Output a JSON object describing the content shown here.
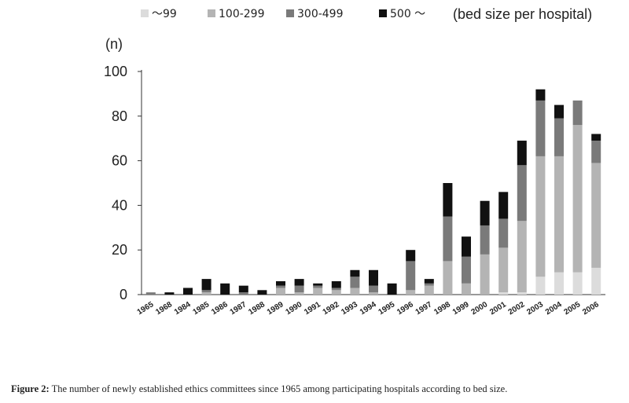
{
  "chart_data": {
    "type": "bar",
    "stacked": true,
    "title": "",
    "ylabel": "(n)",
    "xlabel": "",
    "ylim": [
      0,
      100
    ],
    "yticks": [
      0,
      20,
      40,
      60,
      80,
      100
    ],
    "legend_title": "(bed size per hospital)",
    "legend_position": "top",
    "categories": [
      "1965",
      "1968",
      "1984",
      "1985",
      "1986",
      "1987",
      "1988",
      "1989",
      "1990",
      "1991",
      "1992",
      "1993",
      "1994",
      "1995",
      "1996",
      "1997",
      "1998",
      "1999",
      "2000",
      "2001",
      "2002",
      "2003",
      "2004",
      "2005",
      "2006"
    ],
    "series": [
      {
        "name": "～99",
        "color": "#dcdcdc",
        "values": [
          0,
          0,
          0,
          0,
          0,
          0,
          0,
          0,
          0,
          0,
          0,
          0,
          0,
          0,
          0,
          0,
          0,
          0,
          0,
          1,
          1,
          8,
          10,
          10,
          12
        ]
      },
      {
        "name": "100-299",
        "color": "#b4b4b4",
        "values": [
          0,
          0,
          0,
          1,
          0,
          0,
          0,
          3,
          1,
          3,
          2,
          3,
          1,
          0,
          2,
          4,
          15,
          5,
          18,
          20,
          32,
          54,
          52,
          66,
          47
        ]
      },
      {
        "name": "300-499",
        "color": "#7a7a7a",
        "values": [
          1,
          0,
          0,
          1,
          0,
          1,
          0,
          1,
          3,
          1,
          1,
          5,
          3,
          0,
          13,
          1,
          20,
          12,
          13,
          13,
          25,
          25,
          17,
          11,
          10
        ]
      },
      {
        "name": "500 ～",
        "color": "#111111",
        "values": [
          0,
          1,
          3,
          5,
          5,
          3,
          2,
          2,
          3,
          1,
          3,
          3,
          7,
          5,
          5,
          2,
          15,
          9,
          11,
          12,
          11,
          5,
          6,
          0,
          3
        ]
      }
    ]
  },
  "caption": {
    "label": "Figure 2:",
    "text": " The number of newly established ethics committees since 1965 among participating hospitals according to bed size."
  }
}
